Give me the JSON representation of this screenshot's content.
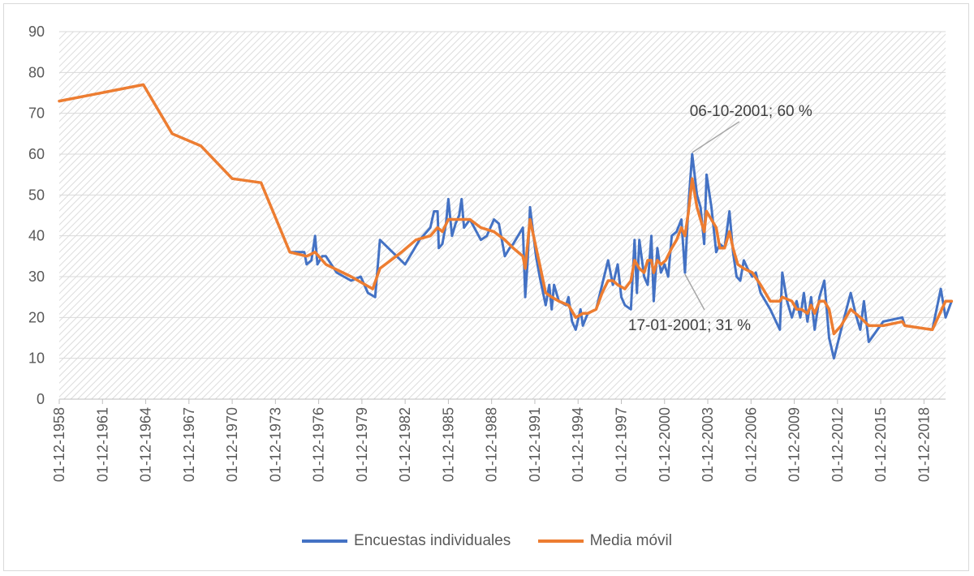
{
  "colors": {
    "series1": "#4472c4",
    "series2": "#ed7d31",
    "grid": "#d9d9d9",
    "hatch": "#dcdcdc",
    "axis_text": "#595959",
    "annotation_line": "#a6a6a6"
  },
  "chart_data": {
    "type": "line",
    "title": "",
    "xlabel": "",
    "ylabel": "",
    "ylim": [
      0,
      90
    ],
    "xlim": [
      "1958-12-01",
      "2020-06-01"
    ],
    "yticks": [
      0,
      10,
      20,
      30,
      40,
      50,
      60,
      70,
      80,
      90
    ],
    "xtick_labels": [
      "01-12-1958",
      "01-12-1961",
      "01-12-1964",
      "01-12-1967",
      "01-12-1970",
      "01-12-1973",
      "01-12-1976",
      "01-12-1979",
      "01-12-1982",
      "01-12-1985",
      "01-12-1988",
      "01-12-1991",
      "01-12-1994",
      "01-12-1997",
      "01-12-2000",
      "01-12-2003",
      "01-12-2006",
      "01-12-2009",
      "01-12-2012",
      "01-12-2015",
      "01-12-2018"
    ],
    "grid": true,
    "legend_position": "bottom",
    "series": [
      {
        "name": "Encuestas individuales",
        "color": "#4472c4",
        "points": [
          [
            "1958-12",
            73
          ],
          [
            "1964-10",
            77
          ],
          [
            "1966-10",
            65
          ],
          [
            "1968-10",
            62
          ],
          [
            "1970-12",
            54
          ],
          [
            "1972-12",
            53
          ],
          [
            "1974-12",
            36
          ],
          [
            "1975-12",
            36
          ],
          [
            "1976-02",
            33
          ],
          [
            "1976-06",
            34
          ],
          [
            "1976-09",
            40
          ],
          [
            "1976-11",
            33
          ],
          [
            "1977-03",
            35
          ],
          [
            "1977-06",
            35
          ],
          [
            "1978-03",
            31
          ],
          [
            "1979-03",
            29
          ],
          [
            "1979-11",
            30
          ],
          [
            "1980-05",
            26
          ],
          [
            "1980-11",
            25
          ],
          [
            "1981-03",
            39
          ],
          [
            "1982-12",
            33
          ],
          [
            "1983-12",
            39
          ],
          [
            "1984-09",
            42
          ],
          [
            "1984-12",
            46
          ],
          [
            "1985-03",
            46
          ],
          [
            "1985-04",
            37
          ],
          [
            "1985-07",
            38
          ],
          [
            "1985-10",
            43
          ],
          [
            "1985-12",
            49
          ],
          [
            "1986-03",
            40
          ],
          [
            "1986-06",
            43
          ],
          [
            "1986-09",
            45
          ],
          [
            "1986-11",
            49
          ],
          [
            "1987-01",
            42
          ],
          [
            "1987-06",
            44
          ],
          [
            "1988-03",
            39
          ],
          [
            "1988-08",
            40
          ],
          [
            "1989-02",
            44
          ],
          [
            "1989-06",
            43
          ],
          [
            "1989-11",
            35
          ],
          [
            "1990-03",
            37
          ],
          [
            "1990-06",
            38
          ],
          [
            "1991-02",
            42
          ],
          [
            "1991-04",
            25
          ],
          [
            "1991-06",
            34
          ],
          [
            "1991-08",
            47
          ],
          [
            "1992-01",
            35
          ],
          [
            "1992-04",
            30
          ],
          [
            "1992-09",
            23
          ],
          [
            "1992-12",
            28
          ],
          [
            "1993-02",
            22
          ],
          [
            "1993-04",
            28
          ],
          [
            "1993-08",
            24
          ],
          [
            "1994-02",
            23
          ],
          [
            "1994-04",
            25
          ],
          [
            "1994-07",
            19
          ],
          [
            "1994-10",
            17
          ],
          [
            "1995-02",
            22
          ],
          [
            "1995-04",
            18
          ],
          [
            "1995-08",
            21
          ],
          [
            "1996-03",
            22
          ],
          [
            "1996-08",
            28
          ],
          [
            "1997-01",
            34
          ],
          [
            "1997-05",
            28
          ],
          [
            "1997-09",
            33
          ],
          [
            "1997-12",
            25
          ],
          [
            "1998-03",
            23
          ],
          [
            "1998-08",
            22
          ],
          [
            "1998-11",
            39
          ],
          [
            "1999-01",
            26
          ],
          [
            "1999-03",
            39
          ],
          [
            "1999-07",
            30
          ],
          [
            "1999-10",
            28
          ],
          [
            "2000-01",
            40
          ],
          [
            "2000-03",
            24
          ],
          [
            "2000-06",
            37
          ],
          [
            "2000-09",
            31
          ],
          [
            "2000-12",
            33
          ],
          [
            "2001-03",
            30
          ],
          [
            "2001-06",
            40
          ],
          [
            "2001-10",
            41
          ],
          [
            "2002-02",
            44
          ],
          [
            "2002-05",
            31
          ],
          [
            "2002-08",
            48
          ],
          [
            "2002-11",
            60
          ],
          [
            "2003-03",
            50
          ],
          [
            "2003-06",
            47
          ],
          [
            "2003-09",
            38
          ],
          [
            "2003-11",
            55
          ],
          [
            "2004-03",
            47
          ],
          [
            "2004-07",
            36
          ],
          [
            "2004-10",
            38
          ],
          [
            "2005-02",
            37
          ],
          [
            "2005-06",
            46
          ],
          [
            "2005-09",
            36
          ],
          [
            "2005-12",
            30
          ],
          [
            "2006-03",
            29
          ],
          [
            "2006-06",
            34
          ],
          [
            "2006-09",
            32
          ],
          [
            "2007-01",
            30
          ],
          [
            "2007-04",
            31
          ],
          [
            "2007-08",
            26
          ],
          [
            "2008-04",
            22
          ],
          [
            "2008-12",
            17
          ],
          [
            "2009-02",
            31
          ],
          [
            "2009-06",
            24
          ],
          [
            "2009-10",
            20
          ],
          [
            "2010-02",
            24
          ],
          [
            "2010-05",
            20
          ],
          [
            "2010-08",
            26
          ],
          [
            "2010-11",
            19
          ],
          [
            "2011-02",
            25
          ],
          [
            "2011-05",
            17
          ],
          [
            "2011-09",
            25
          ],
          [
            "2012-01",
            29
          ],
          [
            "2012-05",
            15
          ],
          [
            "2012-09",
            10
          ],
          [
            "2013-03",
            17
          ],
          [
            "2013-11",
            26
          ],
          [
            "2014-03",
            21
          ],
          [
            "2014-07",
            17
          ],
          [
            "2014-10",
            24
          ],
          [
            "2015-02",
            14
          ],
          [
            "2016-02",
            19
          ],
          [
            "2017-06",
            20
          ],
          [
            "2017-08",
            18
          ],
          [
            "2019-07",
            17
          ],
          [
            "2020-02",
            27
          ],
          [
            "2020-06",
            20
          ],
          [
            "2020-11",
            24
          ]
        ]
      },
      {
        "name": "Media móvil",
        "color": "#ed7d31",
        "points": [
          [
            "1958-12",
            73
          ],
          [
            "1964-10",
            77
          ],
          [
            "1966-10",
            65
          ],
          [
            "1968-10",
            62
          ],
          [
            "1970-12",
            54
          ],
          [
            "1972-12",
            53
          ],
          [
            "1974-12",
            36
          ],
          [
            "1976-02",
            35
          ],
          [
            "1976-09",
            36
          ],
          [
            "1977-06",
            33
          ],
          [
            "1979-03",
            30
          ],
          [
            "1980-03",
            28
          ],
          [
            "1980-09",
            27
          ],
          [
            "1981-03",
            32
          ],
          [
            "1982-09",
            36
          ],
          [
            "1983-09",
            39
          ],
          [
            "1984-09",
            40
          ],
          [
            "1985-03",
            42
          ],
          [
            "1985-07",
            41
          ],
          [
            "1985-12",
            44
          ],
          [
            "1986-06",
            44
          ],
          [
            "1986-11",
            44
          ],
          [
            "1987-06",
            44
          ],
          [
            "1988-03",
            42
          ],
          [
            "1989-02",
            41
          ],
          [
            "1989-11",
            39
          ],
          [
            "1990-06",
            37
          ],
          [
            "1991-02",
            35
          ],
          [
            "1991-04",
            32
          ],
          [
            "1991-08",
            44
          ],
          [
            "1992-04",
            33
          ],
          [
            "1992-09",
            26
          ],
          [
            "1993-02",
            25
          ],
          [
            "1993-08",
            24
          ],
          [
            "1994-04",
            23
          ],
          [
            "1994-10",
            20
          ],
          [
            "1995-04",
            21
          ],
          [
            "1995-08",
            21
          ],
          [
            "1996-03",
            22
          ],
          [
            "1996-08",
            26
          ],
          [
            "1997-01",
            29
          ],
          [
            "1997-05",
            29
          ],
          [
            "1997-09",
            28
          ],
          [
            "1998-03",
            27
          ],
          [
            "1998-08",
            29
          ],
          [
            "1998-11",
            34
          ],
          [
            "1999-03",
            32
          ],
          [
            "1999-07",
            31
          ],
          [
            "1999-10",
            34
          ],
          [
            "2000-01",
            34
          ],
          [
            "2000-03",
            31
          ],
          [
            "2000-06",
            34
          ],
          [
            "2000-09",
            33
          ],
          [
            "2001-01",
            34
          ],
          [
            "2001-06",
            37
          ],
          [
            "2001-10",
            39
          ],
          [
            "2002-02",
            42
          ],
          [
            "2002-05",
            40
          ],
          [
            "2002-08",
            46
          ],
          [
            "2002-11",
            54
          ],
          [
            "2003-03",
            47
          ],
          [
            "2003-06",
            44
          ],
          [
            "2003-09",
            41
          ],
          [
            "2003-11",
            46
          ],
          [
            "2004-07",
            42
          ],
          [
            "2004-10",
            37
          ],
          [
            "2005-02",
            37
          ],
          [
            "2005-06",
            41
          ],
          [
            "2005-09",
            37
          ],
          [
            "2006-01",
            33
          ],
          [
            "2006-06",
            32
          ],
          [
            "2007-01",
            31
          ],
          [
            "2007-08",
            28
          ],
          [
            "2008-04",
            24
          ],
          [
            "2008-12",
            24
          ],
          [
            "2009-02",
            25
          ],
          [
            "2009-10",
            24
          ],
          [
            "2010-02",
            22
          ],
          [
            "2010-06",
            22
          ],
          [
            "2010-11",
            21
          ],
          [
            "2011-02",
            23
          ],
          [
            "2011-05",
            21
          ],
          [
            "2011-09",
            24
          ],
          [
            "2012-01",
            24
          ],
          [
            "2012-05",
            22
          ],
          [
            "2012-09",
            16
          ],
          [
            "2013-03",
            18
          ],
          [
            "2013-11",
            22
          ],
          [
            "2014-07",
            20
          ],
          [
            "2015-02",
            18
          ],
          [
            "2016-02",
            18
          ],
          [
            "2017-06",
            19
          ],
          [
            "2017-08",
            18
          ],
          [
            "2019-07",
            17
          ],
          [
            "2020-06",
            24
          ],
          [
            "2020-11",
            24
          ]
        ]
      }
    ],
    "annotations": [
      {
        "label": "06-10-2001; 60 %",
        "x": "2002-11",
        "y": 60
      },
      {
        "label": "17-01-2001; 31 %",
        "x": "2002-05",
        "y": 31
      }
    ]
  },
  "legend": {
    "series1_label": "Encuestas individuales",
    "series2_label": "Media móvil"
  }
}
